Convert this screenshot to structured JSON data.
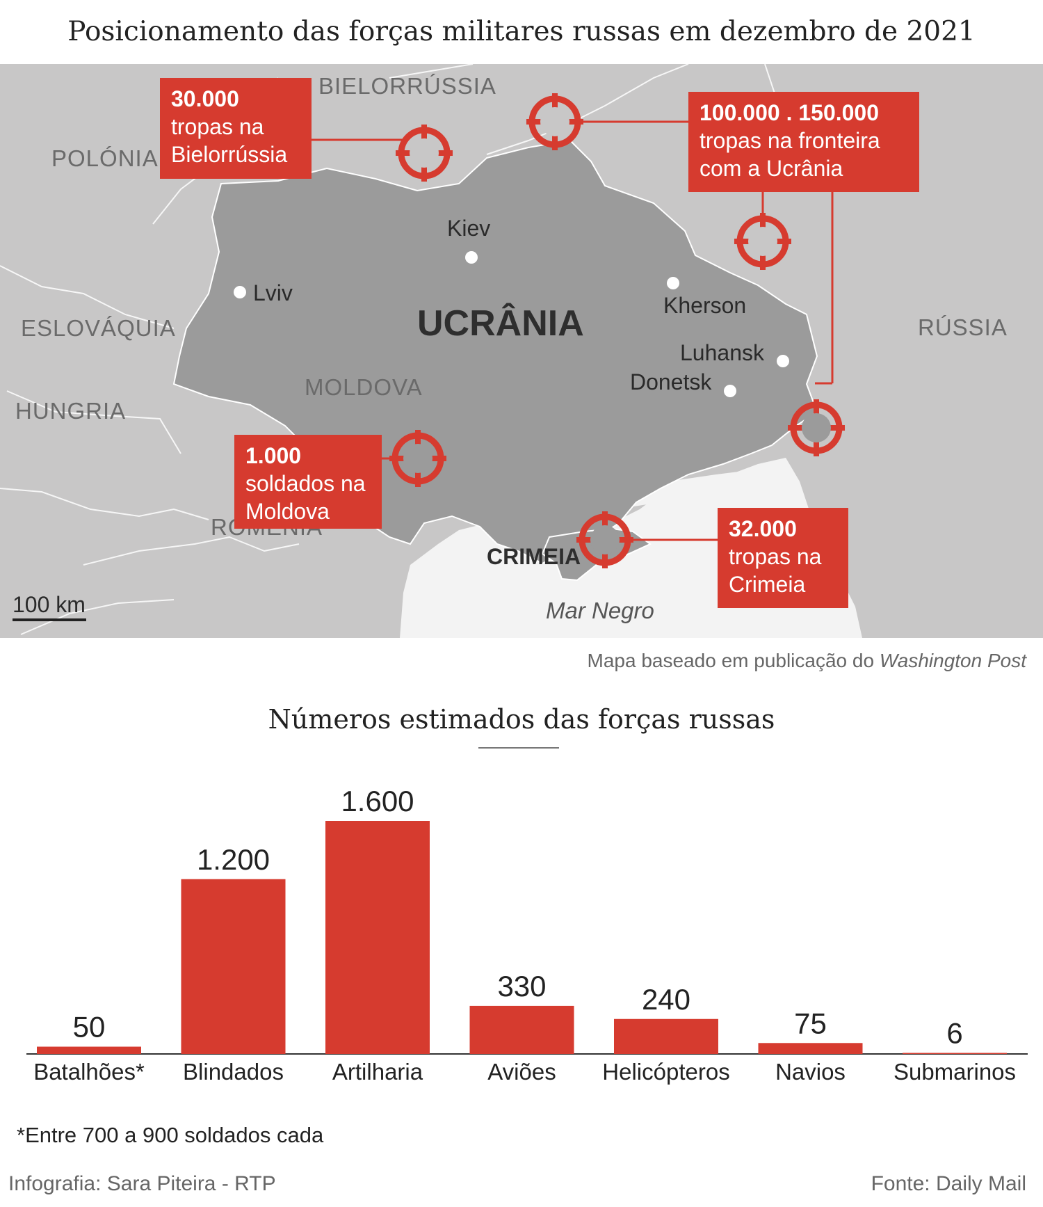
{
  "title": "Posicionamento das forças militares russas em dezembro de 2021",
  "map": {
    "countries": {
      "belarus": "BIELORRÚSSIA",
      "poland": "POLÓNIA",
      "slovakia": "ESLOVÁQUIA",
      "hungary": "HUNGRIA",
      "moldova": "MOLDOVA",
      "romania": "ROMÉNIA",
      "russia": "RÚSSIA",
      "ukraine": "UCRÂNIA",
      "crimea": "CRIMEIA"
    },
    "cities": {
      "kiev": "Kiev",
      "lviv": "Lviv",
      "kherson": "Kherson",
      "luhansk": "Luhansk",
      "donetsk": "Donetsk"
    },
    "sea": "Mar Negro",
    "scale": "100 km",
    "callouts": {
      "belarus": {
        "number": "30.000",
        "line1": "tropas na",
        "line2": "Bielorrússia"
      },
      "border": {
        "number": "100.000 . 150.000",
        "line1": "tropas na fronteira",
        "line2": "com a Ucrânia"
      },
      "moldova": {
        "number": "1.000",
        "line1": "soldados na",
        "line2": "Moldova"
      },
      "crimea": {
        "number": "32.000",
        "line1": "tropas na",
        "line2": "Crimeia"
      }
    },
    "source_prefix": "Mapa baseado em publicação do ",
    "source_name": "Washington Post",
    "colors": {
      "land": "#c8c7c7",
      "ukraine": "#9b9b9b",
      "sea": "#f3f3f3",
      "accent": "#d63b2f"
    },
    "icons": [
      "crosshair-icon"
    ]
  },
  "chart_data": {
    "type": "bar",
    "title": "Números estimados das forças russas",
    "categories": [
      "Batalhões*",
      "Blindados",
      "Artilharia",
      "Aviões",
      "Helicópteros",
      "Navios",
      "Submarinos"
    ],
    "values": [
      50,
      1200,
      1600,
      330,
      240,
      75,
      6
    ],
    "value_labels": [
      "50",
      "1.200",
      "1.600",
      "330",
      "240",
      "75",
      "6"
    ],
    "ylim": [
      0,
      1600
    ],
    "grid": false,
    "color": "#d63b2f"
  },
  "footnote": "*Entre 700 a 900 soldados cada",
  "credit": "Infografia: Sara Piteira - RTP",
  "fonte": "Fonte: Daily Mail"
}
